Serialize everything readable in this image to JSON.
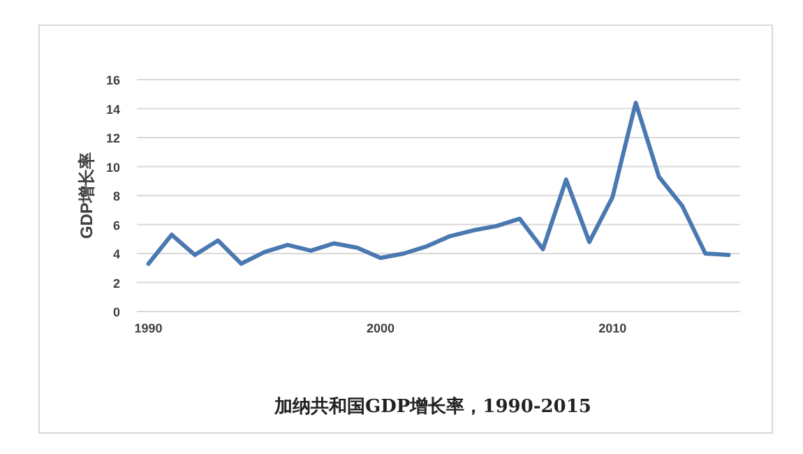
{
  "chart_data": {
    "type": "line",
    "title": "加纳共和国GDP增长率，1990-2015",
    "ylabel": "GDP增长率",
    "x": [
      1990,
      1991,
      1992,
      1993,
      1994,
      1995,
      1996,
      1997,
      1998,
      1999,
      2000,
      2001,
      2002,
      2003,
      2004,
      2005,
      2006,
      2007,
      2008,
      2009,
      2010,
      2011,
      2012,
      2013,
      2014,
      2015
    ],
    "series": [
      {
        "color": "#4a78b0",
        "values": [
          3.3,
          5.3,
          3.9,
          4.9,
          3.3,
          4.1,
          4.6,
          4.2,
          4.7,
          4.4,
          3.7,
          4.0,
          4.5,
          5.2,
          5.6,
          5.9,
          6.4,
          4.3,
          9.1,
          4.8,
          7.9,
          14.4,
          9.3,
          7.3,
          4.0,
          3.9
        ]
      }
    ],
    "xlim": [
      1989.5,
      2015.5
    ],
    "xticks": [
      1990,
      2000,
      2010
    ],
    "ylim": [
      0,
      16
    ],
    "yticks": [
      0,
      2,
      4,
      6,
      8,
      10,
      12,
      14,
      16
    ],
    "grid": "y",
    "marker": "none",
    "line_style": "solid"
  }
}
